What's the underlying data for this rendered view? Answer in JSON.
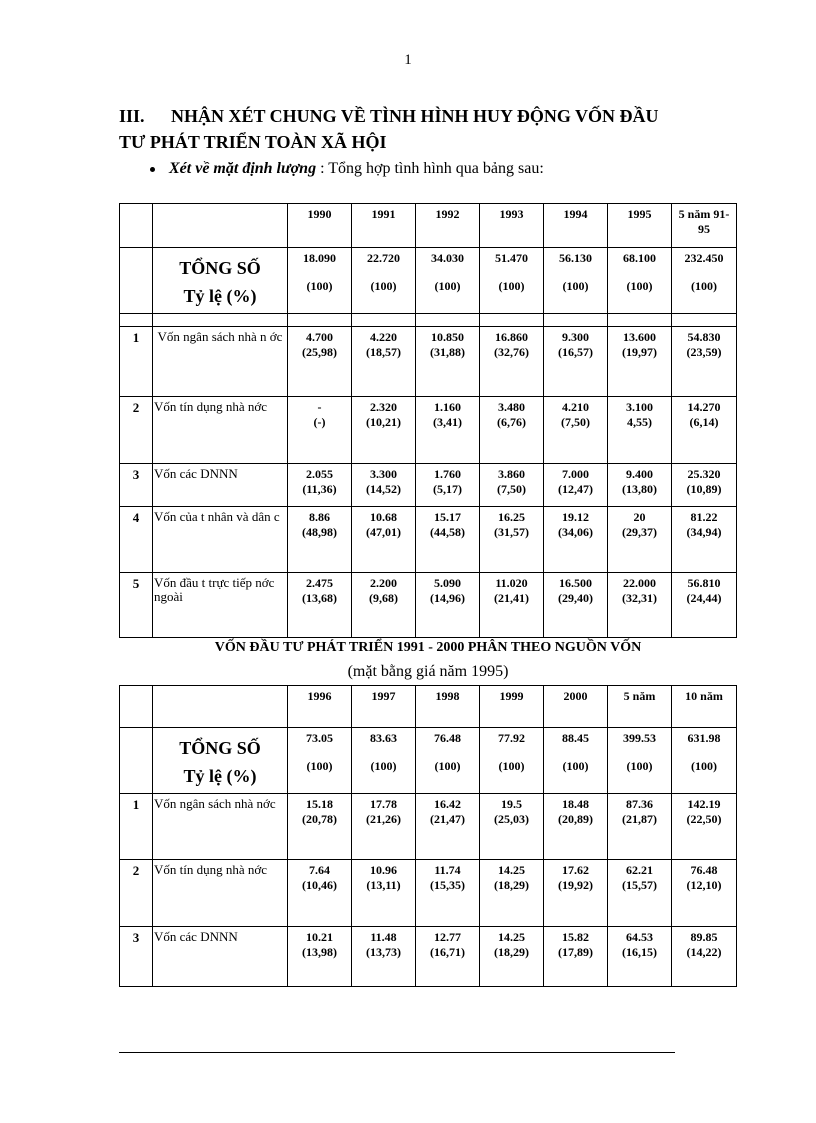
{
  "page_number": "1",
  "heading": {
    "number": "III.",
    "line1": "NHẬN XÉT CHUNG VỀ TÌNH HÌNH HUY ĐỘNG VỐN ĐẦU",
    "line2": "TƯ PHÁT TRIỂN TOÀN XÃ HỘI"
  },
  "bullet": {
    "label": "Xét về mặt định lượng",
    "text": " : Tổng hợp tình hình qua bảng sau:"
  },
  "table1": {
    "columns": [
      "1990",
      "1991",
      "1992",
      "1993",
      "1994",
      "1995",
      "5 năm 91-95"
    ],
    "total": {
      "label1": "TỔNG SỐ",
      "label2": "Tỷ lệ (%)",
      "values": [
        "18.090",
        "22.720",
        "34.030",
        "51.470",
        "56.130",
        "68.100",
        "232.450"
      ],
      "shares": [
        "(100)",
        "(100)",
        "(100)",
        "(100)",
        "(100)",
        "(100)",
        "(100)"
      ]
    },
    "rows": [
      {
        "no": "1",
        "label": "Vốn ngân sách nhà n ớc",
        "values": [
          "4.700",
          "4.220",
          "10.850",
          "16.860",
          "9.300",
          "13.600",
          "54.830"
        ],
        "shares": [
          "(25,98)",
          "(18,57)",
          "(31,88)",
          "(32,76)",
          "(16,57)",
          "(19,97)",
          "(23,59)"
        ]
      },
      {
        "no": "2",
        "label": "Vốn tín dụng nhà nớc",
        "values": [
          "-",
          "2.320",
          "1.160",
          "3.480",
          "4.210",
          "3.100",
          "14.270"
        ],
        "shares": [
          "(-)",
          "(10,21)",
          "(3,41)",
          "(6,76)",
          "(7,50)",
          "4,55)",
          "(6,14)"
        ]
      },
      {
        "no": "3",
        "label": "Vốn các DNNN",
        "values": [
          "2.055",
          "3.300",
          "1.760",
          "3.860",
          "7.000",
          "9.400",
          "25.320"
        ],
        "shares": [
          "(11,36)",
          "(14,52)",
          "(5,17)",
          "(7,50)",
          "(12,47)",
          "(13,80)",
          "(10,89)"
        ]
      },
      {
        "no": "4",
        "label": "Vốn của t nhân và dân c",
        "values": [
          "8.86",
          "10.68",
          "15.17",
          "16.25",
          "19.12",
          "20",
          "81.22"
        ],
        "shares": [
          "(48,98)",
          "(47,01)",
          "(44,58)",
          "(31,57)",
          "(34,06)",
          "(29,37)",
          "(34,94)"
        ]
      },
      {
        "no": "5",
        "label": "Vốn đầu t trực tiếp nớc ngoài",
        "values": [
          "2.475",
          "2.200",
          "5.090",
          "11.020",
          "16.500",
          "22.000",
          "56.810"
        ],
        "shares": [
          "(13,68)",
          "(9,68)",
          "(14,96)",
          "(21,41)",
          "(29,40)",
          "(32,31)",
          "(24,44)"
        ]
      }
    ]
  },
  "caption": {
    "title": "VỐN ĐẦU TƯ PHÁT TRIỂN 1991 - 2000 PHÂN THEO NGUỒN VỐN",
    "subtitle": "(mặt bằng giá năm 1995)"
  },
  "table2": {
    "columns": [
      "1996",
      "1997",
      "1998",
      "1999",
      "2000",
      "5 năm",
      "10 năm"
    ],
    "total": {
      "label1": "TỔNG SỐ",
      "label2": "Tỷ lệ (%)",
      "values": [
        "73.05",
        "83.63",
        "76.48",
        "77.92",
        "88.45",
        "399.53",
        "631.98"
      ],
      "shares": [
        "(100)",
        "(100)",
        "(100)",
        "(100)",
        "(100)",
        "(100)",
        "(100)"
      ]
    },
    "rows": [
      {
        "no": "1",
        "label": "Vốn ngân sách nhà nớc",
        "values": [
          "15.18",
          "17.78",
          "16.42",
          "19.5",
          "18.48",
          "87.36",
          "142.19"
        ],
        "shares": [
          "(20,78)",
          "(21,26)",
          "(21,47)",
          "(25,03)",
          "(20,89)",
          "(21,87)",
          "(22,50)"
        ]
      },
      {
        "no": "2",
        "label": "Vốn tín dụng nhà nớc",
        "values": [
          "7.64",
          "10.96",
          "11.74",
          "14.25",
          "17.62",
          "62.21",
          "76.48"
        ],
        "shares": [
          "(10,46)",
          "(13,11)",
          "(15,35)",
          "(18,29)",
          "(19,92)",
          "(15,57)",
          "(12,10)"
        ]
      },
      {
        "no": "3",
        "label": "Vốn các DNNN",
        "values": [
          "10.21",
          "11.48",
          "12.77",
          "14.25",
          "15.82",
          "64.53",
          "89.85"
        ],
        "shares": [
          "(13,98)",
          "(13,73)",
          "(16,71)",
          "(18,29)",
          "(17,89)",
          "(16,15)",
          "(14,22)"
        ]
      }
    ]
  }
}
